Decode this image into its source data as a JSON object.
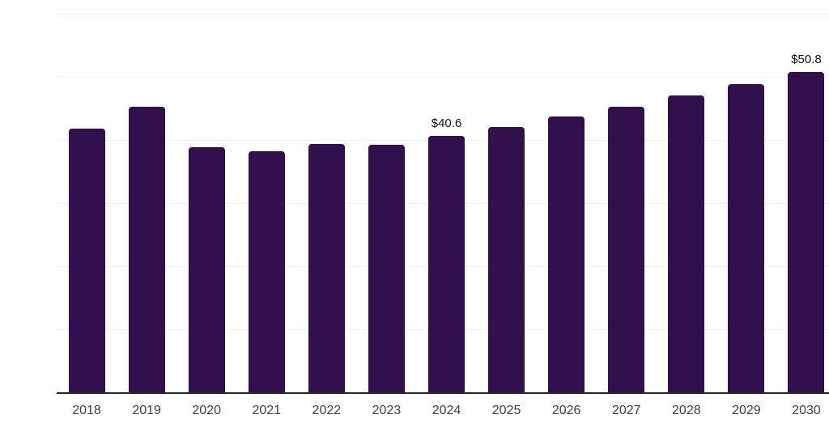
{
  "chart_data": {
    "type": "bar",
    "title": "",
    "xlabel": "",
    "ylabel": "",
    "categories": [
      "2018",
      "2019",
      "2020",
      "2021",
      "2022",
      "2023",
      "2024",
      "2025",
      "2026",
      "2027",
      "2028",
      "2029",
      "2030"
    ],
    "values": [
      41.8,
      45.2,
      38.8,
      38.2,
      39.4,
      39.3,
      40.6,
      42.1,
      43.7,
      45.2,
      47.0,
      48.9,
      50.8
    ],
    "point_labels": [
      "",
      "",
      "",
      "",
      "",
      "",
      "$40.6",
      "",
      "",
      "",
      "",
      "",
      "$50.8"
    ],
    "ylim": [
      0,
      60
    ],
    "y_gridlines": [
      10,
      20,
      30,
      40,
      50,
      60
    ],
    "grid": true,
    "legend": false,
    "colors": {
      "bar": "#32104d",
      "axis_line": "#262626",
      "gridline": "#f1f1f1",
      "tick_label": "#3f3f3f",
      "data_label": "#111111",
      "background": "#ffffff"
    }
  }
}
